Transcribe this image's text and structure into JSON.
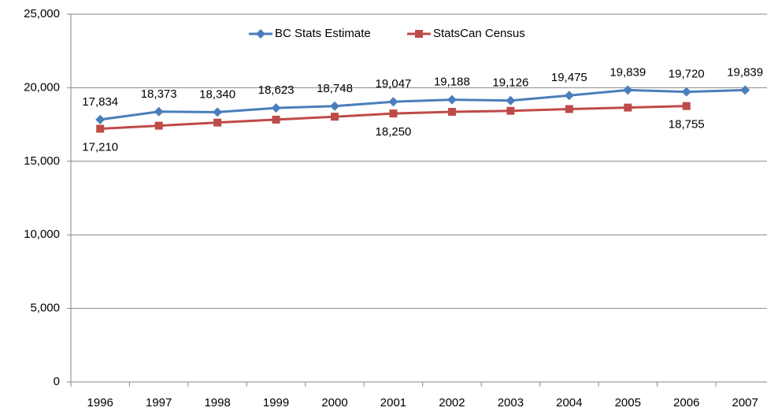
{
  "chart_data": {
    "type": "line",
    "categories": [
      "1996",
      "1997",
      "1998",
      "1999",
      "2000",
      "2001",
      "2002",
      "2003",
      "2004",
      "2005",
      "2006",
      "2007"
    ],
    "series": [
      {
        "name": "BC Stats Estimate",
        "color": "#4a7ebb",
        "marker": "diamond",
        "values": [
          17834,
          18373,
          18340,
          18623,
          18748,
          19047,
          19188,
          19126,
          19475,
          19839,
          19720,
          19839
        ],
        "value_labels": [
          "17,834",
          "18,373",
          "18,340",
          "18,623",
          "18,748",
          "19,047",
          "19,188",
          "19,126",
          "19,475",
          "19,839",
          "19,720",
          "19,839"
        ],
        "label_position": "above"
      },
      {
        "name": "StatsCan Census",
        "color": "#be4b48",
        "marker": "square",
        "values": [
          17210,
          17420,
          17630,
          17830,
          18030,
          18250,
          18360,
          18430,
          18550,
          18650,
          18755,
          null
        ],
        "value_labels": [
          "17,210",
          null,
          null,
          null,
          null,
          "18,250",
          null,
          null,
          null,
          null,
          "18,755",
          null
        ],
        "label_position": "below"
      }
    ],
    "ylim": [
      0,
      25000
    ],
    "yticks": [
      0,
      {
        "value": 5000,
        "label": "5,000"
      },
      {
        "value": 10000,
        "label": "10,000"
      },
      {
        "value": 15000,
        "label": "15,000"
      },
      {
        "value": 20000,
        "label": "20,000"
      },
      {
        "value": 25000,
        "label": "25,000"
      }
    ],
    "grid": true,
    "legend": "top"
  }
}
